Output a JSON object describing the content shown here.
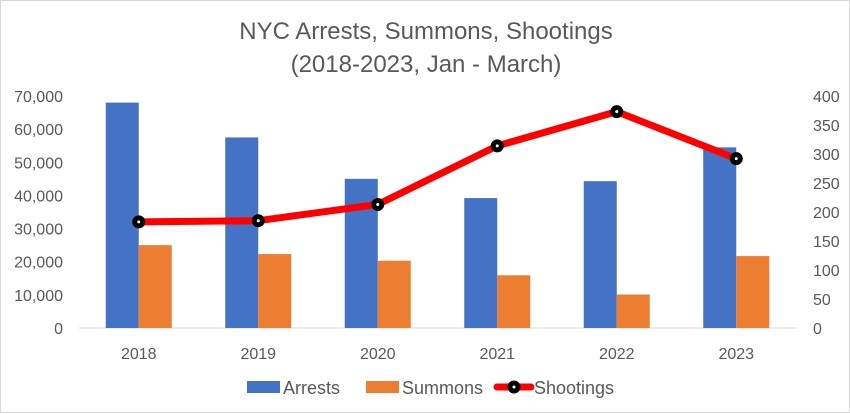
{
  "chart_data": {
    "type": "bar",
    "title_lines": [
      "NYC Arrests, Summons, Shootings",
      "(2018-2023, Jan - March)"
    ],
    "categories": [
      "2018",
      "2019",
      "2020",
      "2021",
      "2022",
      "2023"
    ],
    "series": [
      {
        "name": "Arrests",
        "axis": "left",
        "kind": "bar",
        "color": "#4472c4",
        "values": [
          68000,
          57500,
          45000,
          39200,
          44300,
          54500
        ]
      },
      {
        "name": "Summons",
        "axis": "left",
        "kind": "bar",
        "color": "#ed7d31",
        "values": [
          25000,
          22300,
          20300,
          15900,
          10100,
          21700
        ]
      },
      {
        "name": "Shootings",
        "axis": "right",
        "kind": "line",
        "color": "#ff0000",
        "marker_color": "#000000",
        "values": [
          183,
          185,
          213,
          314,
          373,
          292
        ]
      }
    ],
    "y_left": {
      "min": 0,
      "max": 70000,
      "step": 10000,
      "tick_labels": [
        "0",
        "10,000",
        "20,000",
        "30,000",
        "40,000",
        "50,000",
        "60,000",
        "70,000"
      ]
    },
    "y_right": {
      "min": 0,
      "max": 400,
      "step": 50,
      "tick_labels": [
        "0",
        "50",
        "100",
        "150",
        "200",
        "250",
        "300",
        "350",
        "400"
      ]
    },
    "grid": false,
    "legend_position": "bottom"
  }
}
